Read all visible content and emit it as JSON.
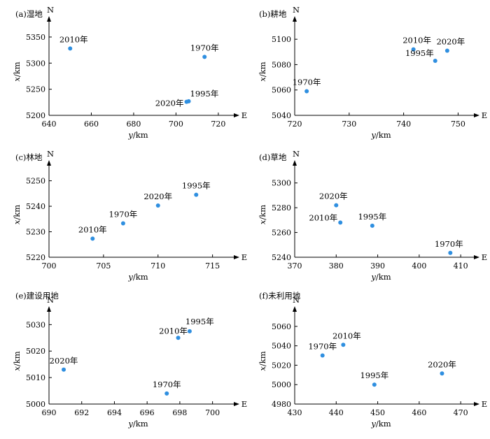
{
  "chart_data": [
    {
      "type": "scatter",
      "title": "(a)湿地",
      "xlabel": "y/km",
      "ylabel": "x/km",
      "north_label": "N",
      "east_label": "E",
      "xlim": [
        640,
        725
      ],
      "ylim": [
        5200,
        5370
      ],
      "xticks": [
        "640",
        "660",
        "680",
        "700",
        "720"
      ],
      "yticks": [
        "5200",
        "5250",
        "5300",
        "5350"
      ],
      "points": [
        {
          "label": "2010年",
          "x": 650,
          "y": 5328
        },
        {
          "label": "1970年",
          "x": 713.5,
          "y": 5312
        },
        {
          "label": "1995年",
          "x": 706,
          "y": 5227
        },
        {
          "label": "2020年",
          "x": 705,
          "y": 5226
        }
      ],
      "point_color": "#2f8fe0"
    },
    {
      "type": "scatter",
      "title": "(b)耕地",
      "xlabel": "y/km",
      "ylabel": "x/km",
      "north_label": "N",
      "east_label": "E",
      "xlim": [
        720,
        752
      ],
      "ylim": [
        5040,
        5110
      ],
      "xticks": [
        "720",
        "730",
        "740",
        "750"
      ],
      "yticks": [
        "5040",
        "5060",
        "5080",
        "5100"
      ],
      "points": [
        {
          "label": "2010年",
          "x": 741.8,
          "y": 5092
        },
        {
          "label": "2020年",
          "x": 748,
          "y": 5091
        },
        {
          "label": "1995年",
          "x": 745.8,
          "y": 5083
        },
        {
          "label": "1970年",
          "x": 722.2,
          "y": 5059
        }
      ],
      "point_color": "#2f8fe0"
    },
    {
      "type": "scatter",
      "title": "(c)林地",
      "xlabel": "y/km",
      "ylabel": "x/km",
      "north_label": "N",
      "east_label": "E",
      "xlim": [
        700,
        716.5
      ],
      "ylim": [
        5220,
        5254
      ],
      "xticks": [
        "700",
        "705",
        "710",
        "715"
      ],
      "yticks": [
        "5220",
        "5230",
        "5240",
        "5250"
      ],
      "points": [
        {
          "label": "1995年",
          "x": 713.5,
          "y": 5244.5
        },
        {
          "label": "2020年",
          "x": 710,
          "y": 5240.3
        },
        {
          "label": "1970年",
          "x": 706.8,
          "y": 5233.3
        },
        {
          "label": "2010年",
          "x": 704,
          "y": 5227.3
        }
      ],
      "point_color": "#2f8fe0"
    },
    {
      "type": "scatter",
      "title": "(d)草地",
      "xlabel": "y/km",
      "ylabel": "x/km",
      "north_label": "N",
      "east_label": "E",
      "xlim": [
        370,
        412
      ],
      "ylim": [
        5240,
        5310
      ],
      "xticks": [
        "370",
        "380",
        "390",
        "400",
        "410"
      ],
      "yticks": [
        "5240",
        "5260",
        "5280",
        "5300"
      ],
      "points": [
        {
          "label": "2020年",
          "x": 380,
          "y": 5282
        },
        {
          "label": "2010年",
          "x": 381,
          "y": 5268
        },
        {
          "label": "1995年",
          "x": 388.7,
          "y": 5265.5
        },
        {
          "label": "1970年",
          "x": 407.5,
          "y": 5243.5
        }
      ],
      "point_color": "#2f8fe0"
    },
    {
      "type": "scatter",
      "title": "(e)建设用地",
      "xlabel": "y/km",
      "ylabel": "x/km",
      "north_label": "N",
      "east_label": "E",
      "xlim": [
        690,
        701
      ],
      "ylim": [
        5000,
        5033
      ],
      "xticks": [
        "690",
        "692",
        "694",
        "696",
        "698",
        "700"
      ],
      "yticks": [
        "5000",
        "5010",
        "5020",
        "5030"
      ],
      "points": [
        {
          "label": "1995年",
          "x": 698.6,
          "y": 5027.5
        },
        {
          "label": "2010年",
          "x": 697.9,
          "y": 5025
        },
        {
          "label": "2020年",
          "x": 690.9,
          "y": 5013
        },
        {
          "label": "1970年",
          "x": 697.2,
          "y": 5004
        }
      ],
      "point_color": "#2f8fe0"
    },
    {
      "type": "scatter",
      "title": "(f)未利用地",
      "xlabel": "y/km",
      "ylabel": "x/km",
      "north_label": "N",
      "east_label": "E",
      "xlim": [
        430,
        472
      ],
      "ylim": [
        4980,
        5070
      ],
      "xticks": [
        "430",
        "440",
        "450",
        "460",
        "470"
      ],
      "yticks": [
        "4980",
        "5000",
        "5020",
        "5040",
        "5060"
      ],
      "points": [
        {
          "label": "2010年",
          "x": 441.7,
          "y": 5041
        },
        {
          "label": "1970年",
          "x": 436.7,
          "y": 5030
        },
        {
          "label": "2020年",
          "x": 465.5,
          "y": 5011.5
        },
        {
          "label": "1995年",
          "x": 449.2,
          "y": 5000
        }
      ],
      "point_color": "#2f8fe0"
    }
  ]
}
